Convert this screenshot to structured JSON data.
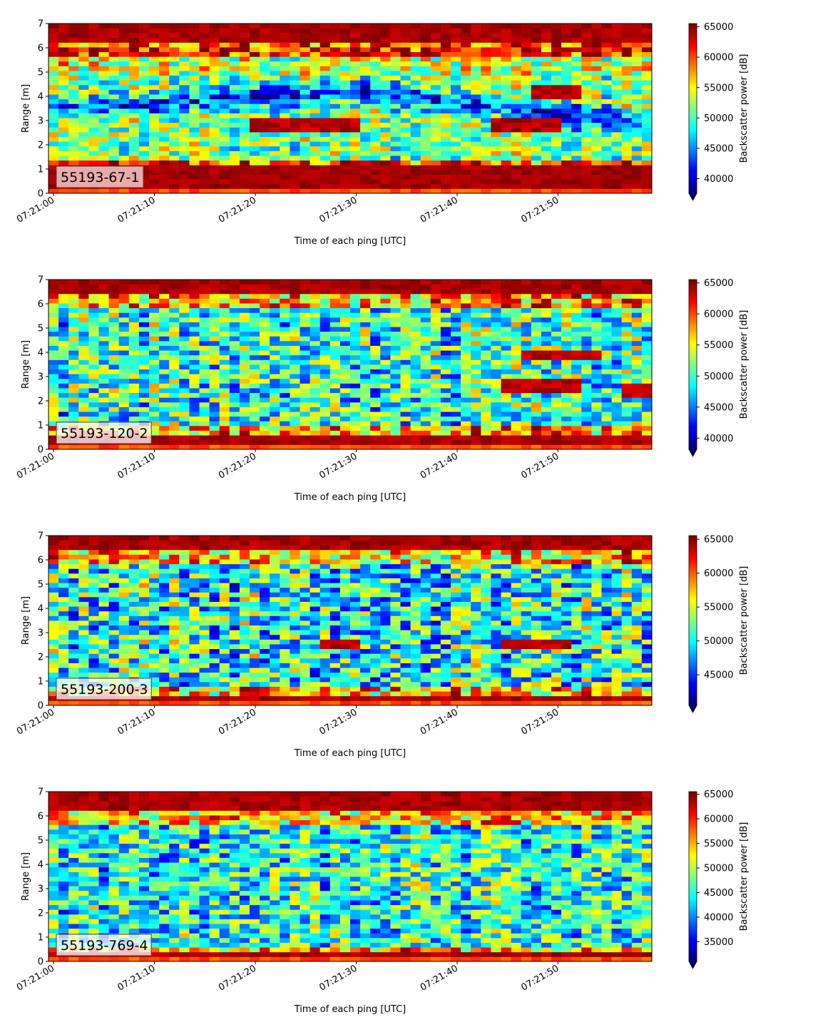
{
  "chart_data": [
    {
      "type": "heatmap",
      "annotation": "55193-67-1",
      "xlabel": "Time of each ping [UTC]",
      "ylabel": "Range [m]",
      "x_ticks": [
        "07:21:00",
        "07:21:10",
        "07:21:20",
        "07:21:30",
        "07:21:40",
        "07:21:50"
      ],
      "y_ticks": [
        "0",
        "1",
        "2",
        "3",
        "4",
        "5",
        "6",
        "7"
      ],
      "ylim": [
        0,
        7
      ],
      "colorbar": {
        "label": "Backscatter power [dB]",
        "ticks": [
          "40000",
          "45000",
          "50000",
          "55000",
          "60000",
          "65000"
        ],
        "range": [
          37600,
          65535
        ],
        "colormap": "jet",
        "extend": "min"
      },
      "pattern": {
        "top_band": [
          6.3,
          7.0
        ],
        "bottom_band": [
          0.15,
          1.1
        ],
        "low_layer_start": [
          3.3,
          4.9
        ],
        "low_layer_mid": 4.0,
        "low_layer_end": [
          2.3,
          3.8
        ],
        "strong_targets": [
          {
            "t": [
              19,
              30
            ],
            "r": 2.8
          },
          {
            "t": [
              43,
              50
            ],
            "r": 2.8
          },
          {
            "t": [
              47,
              52
            ],
            "r": 4.2
          }
        ]
      }
    },
    {
      "type": "heatmap",
      "annotation": "55193-120-2",
      "xlabel": "Time of each ping [UTC]",
      "ylabel": "Range [m]",
      "x_ticks": [
        "07:21:00",
        "07:21:10",
        "07:21:20",
        "07:21:30",
        "07:21:40",
        "07:21:50"
      ],
      "y_ticks": [
        "0",
        "1",
        "2",
        "3",
        "4",
        "5",
        "6",
        "7"
      ],
      "ylim": [
        0,
        7
      ],
      "colorbar": {
        "label": "Backscatter power [dB]",
        "ticks": [
          "40000",
          "45000",
          "50000",
          "55000",
          "60000",
          "65000"
        ],
        "range": [
          38200,
          65535
        ],
        "colormap": "jet",
        "extend": "min"
      },
      "pattern": {
        "top_band": [
          6.4,
          7.0
        ],
        "bottom_band": [
          0.1,
          0.6
        ],
        "strong_targets": [
          {
            "t": [
              44,
              52
            ],
            "r": 2.6
          },
          {
            "t": [
              46,
              54
            ],
            "r": 3.9
          },
          {
            "t": [
              56,
              59
            ],
            "r": 2.45
          }
        ]
      }
    },
    {
      "type": "heatmap",
      "annotation": "55193-200-3",
      "xlabel": "Time of each ping [UTC]",
      "ylabel": "Range [m]",
      "x_ticks": [
        "07:21:00",
        "07:21:10",
        "07:21:20",
        "07:21:30",
        "07:21:40",
        "07:21:50"
      ],
      "y_ticks": [
        "0",
        "1",
        "2",
        "3",
        "4",
        "5",
        "6",
        "7"
      ],
      "ylim": [
        0,
        7
      ],
      "colorbar": {
        "label": "Backscatter power [dB]",
        "ticks": [
          "45000",
          "50000",
          "55000",
          "60000",
          "65000"
        ],
        "range": [
          40500,
          65535
        ],
        "colormap": "jet",
        "extend": "min"
      },
      "pattern": {
        "top_band": [
          6.5,
          7.0
        ],
        "bottom_band": [
          0.1,
          0.4
        ],
        "strong_targets": [
          {
            "t": [
              26,
              30
            ],
            "r": 2.5
          },
          {
            "t": [
              44,
              51
            ],
            "r": 2.55
          }
        ]
      }
    },
    {
      "type": "heatmap",
      "annotation": "55193-769-4",
      "xlabel": "Time of each ping [UTC]",
      "ylabel": "Range [m]",
      "x_ticks": [
        "07:21:00",
        "07:21:10",
        "07:21:20",
        "07:21:30",
        "07:21:40",
        "07:21:50"
      ],
      "y_ticks": [
        "0",
        "1",
        "2",
        "3",
        "4",
        "5",
        "6",
        "7"
      ],
      "ylim": [
        0,
        7
      ],
      "colorbar": {
        "label": "Backscatter power [dB]",
        "ticks": [
          "35000",
          "40000",
          "45000",
          "50000",
          "55000",
          "60000",
          "65000"
        ],
        "range": [
          31000,
          65535
        ],
        "colormap": "jet",
        "extend": "min"
      },
      "pattern": {
        "top_band": [
          6.3,
          6.6
        ],
        "bottom_band": [
          0.15,
          0.3
        ]
      }
    }
  ]
}
